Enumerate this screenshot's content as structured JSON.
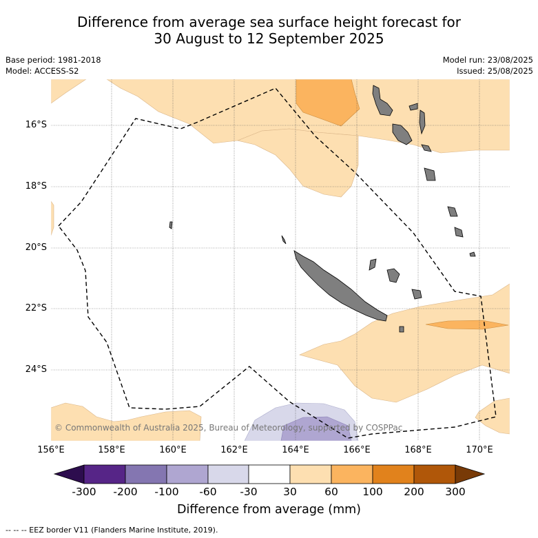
{
  "title_line1": "Difference from average sea surface height forecast for",
  "title_line2": "30 August to 12 September 2025",
  "base_period": "Base period: 1981-2018",
  "model": "Model: ACCESS-S2",
  "model_run": "Model run: 23/08/2025",
  "issued": "Issued: 25/08/2025",
  "copyright": "© Commonwealth of Australia 2025, Bureau of Meteorology, supported by COSPPac",
  "lat_labels": [
    "16°S",
    "18°S",
    "20°S",
    "22°S",
    "24°S"
  ],
  "lon_labels": [
    "156°E",
    "158°E",
    "160°E",
    "162°E",
    "164°E",
    "166°E",
    "168°E",
    "170°E"
  ],
  "colorbar": {
    "title": "Difference from average (mm)",
    "ticks": [
      "-300",
      "-200",
      "-100",
      "-60",
      "-30",
      "30",
      "60",
      "100",
      "200",
      "300"
    ],
    "colors": [
      "#2d0d4e",
      "#562587",
      "#8476b1",
      "#afa6d1",
      "#d8d8ea",
      "#ffffff",
      "#fddfb1",
      "#fbb45f",
      "#e1821c",
      "#b05709",
      "#783a07"
    ]
  },
  "footer": "-- -- -- EEZ border V11 (Flanders Marine Institute, 2019).",
  "land_color": "#7f7f7f"
}
